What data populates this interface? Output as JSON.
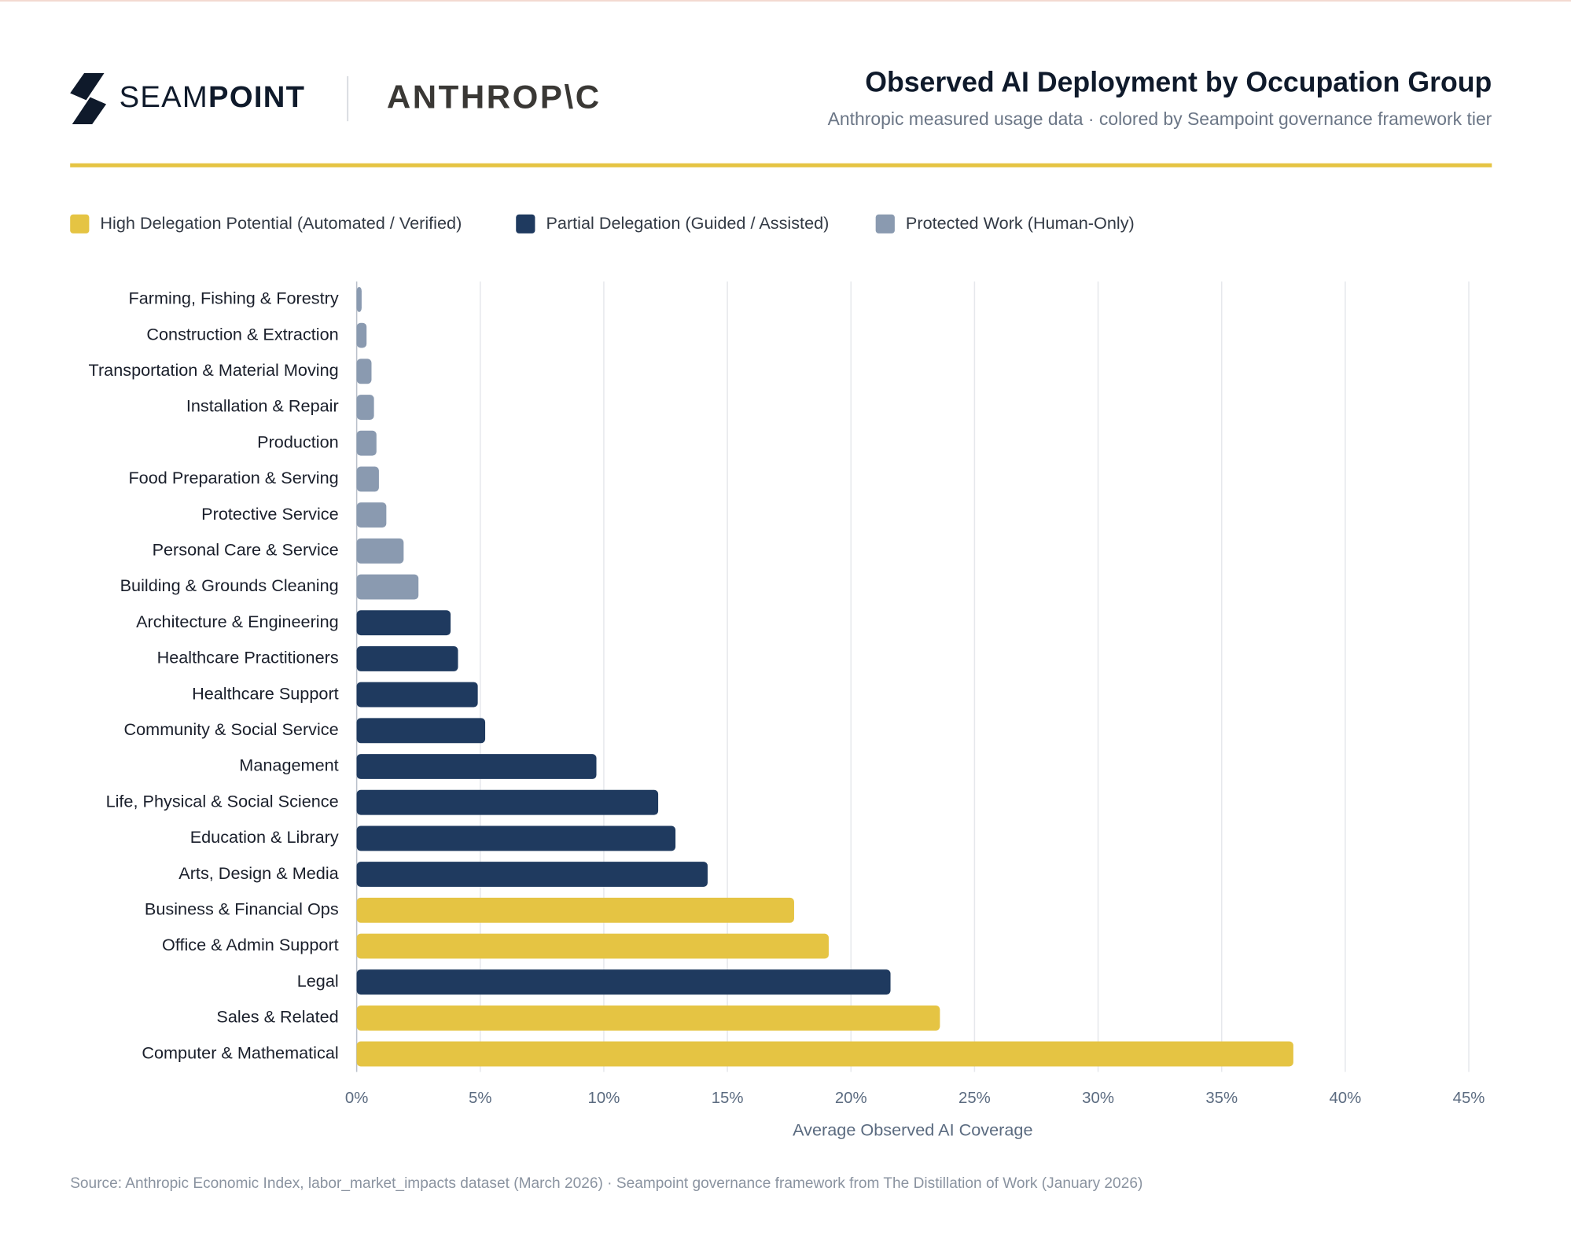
{
  "header": {
    "brand_left_light": "SEAM",
    "brand_left_bold": "POINT",
    "brand_right": "ANTHROP\\C"
  },
  "chart_data": {
    "type": "hbar",
    "title": "Observed AI Deployment by Occupation Group",
    "subtitle": "Anthropic measured usage data · colored by Seampoint governance framework tier",
    "x_label": "Average Observed AI Coverage",
    "source": "Source: Anthropic Economic Index, labor_market_impacts dataset (March 2026) · Seampoint governance framework from The Distillation of Work (January 2026)",
    "categories": [
      "Farming, Fishing & Forestry",
      "Construction & Extraction",
      "Transportation & Material Moving",
      "Installation & Repair",
      "Production",
      "Food Preparation & Serving",
      "Protective Service",
      "Personal Care & Service",
      "Building & Grounds Cleaning",
      "Architecture & Engineering",
      "Healthcare Practitioners",
      "Healthcare Support",
      "Community & Social Service",
      "Management",
      "Life, Physical & Social Science",
      "Education & Library",
      "Arts, Design & Media",
      "Business & Financial Ops",
      "Office & Admin Support",
      "Legal",
      "Sales & Related",
      "Computer & Mathematical"
    ],
    "series": [
      {
        "name": "High Delegation Potential (Automated / Verified)",
        "color": "#e5c443",
        "values": [
          null,
          null,
          null,
          null,
          null,
          null,
          null,
          null,
          null,
          null,
          null,
          null,
          null,
          null,
          null,
          null,
          null,
          17.7,
          19.1,
          null,
          23.6,
          37.9
        ]
      },
      {
        "name": "Partial Delegation (Guided / Assisted)",
        "color": "#1f3a5f",
        "values": [
          null,
          null,
          null,
          null,
          null,
          null,
          null,
          null,
          null,
          3.8,
          4.1,
          4.9,
          5.2,
          9.7,
          12.2,
          12.9,
          14.2,
          null,
          null,
          21.6,
          null,
          null
        ]
      },
      {
        "name": "Protected Work (Human-Only)",
        "color": "#8a9ab0",
        "values": [
          0.2,
          0.4,
          0.6,
          0.7,
          0.8,
          0.9,
          1.2,
          1.9,
          2.5,
          null,
          null,
          null,
          null,
          null,
          null,
          null,
          null,
          null,
          null,
          null,
          null,
          null
        ]
      }
    ],
    "xlim": [
      0,
      45
    ],
    "xticks": [
      {
        "value": 0,
        "label": "0%"
      },
      {
        "value": 5,
        "label": "5%"
      },
      {
        "value": 10,
        "label": "10%"
      },
      {
        "value": 15,
        "label": "15%"
      },
      {
        "value": 20,
        "label": "20%"
      },
      {
        "value": 25,
        "label": "25%"
      },
      {
        "value": 30,
        "label": "30%"
      },
      {
        "value": 35,
        "label": "35%"
      },
      {
        "value": 40,
        "label": "40%"
      },
      {
        "value": 45,
        "label": "45%"
      }
    ],
    "grid": true
  }
}
